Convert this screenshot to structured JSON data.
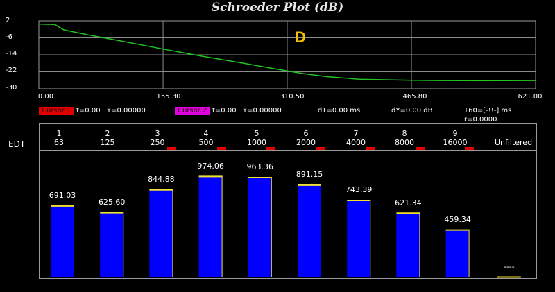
{
  "title": "Schroeder Plot (dB)",
  "colors": {
    "background": "#000000",
    "curve": "#22c422",
    "grid": "#8c8c8c",
    "bar_fill": "#0000ff",
    "bar_top": "#f0e030",
    "cursor1": "#e00000",
    "cursor2": "#e000e0",
    "marker": "#f2c200"
  },
  "plot": {
    "y_ticks": [
      "2",
      "-6",
      "-14",
      "-22",
      "-30"
    ],
    "x_ticks": [
      "0.00",
      "155.30",
      "310.50",
      "465.80",
      "621.00"
    ],
    "marker_label": "D"
  },
  "cursors": {
    "cursor1": {
      "label": "Cursor 1",
      "t": "t=0.00",
      "y": "Y=0.00000"
    },
    "cursor2": {
      "label": "Cursor 2",
      "t": "t=0.00",
      "y": "Y=0.00000"
    },
    "dT": "dT=0.00 ms",
    "dY": "dY=0.00 dB",
    "t60": "T60=[-!!-] ms",
    "r": "r=0.0000"
  },
  "edt": {
    "label": "EDT",
    "bands": [
      {
        "index": "1",
        "freq": "63"
      },
      {
        "index": "2",
        "freq": "125"
      },
      {
        "index": "3",
        "freq": "250"
      },
      {
        "index": "4",
        "freq": "500"
      },
      {
        "index": "5",
        "freq": "1000"
      },
      {
        "index": "6",
        "freq": "2000"
      },
      {
        "index": "7",
        "freq": "4000"
      },
      {
        "index": "8",
        "freq": "8000"
      },
      {
        "index": "9",
        "freq": "16000"
      },
      {
        "index": "",
        "freq": "Unfiltered"
      }
    ]
  },
  "chart_data": [
    {
      "type": "line",
      "title": "Schroeder Plot (dB)",
      "xlim": [
        0,
        621
      ],
      "ylim": [
        -30,
        2
      ],
      "grid": true,
      "series": [
        {
          "x": [
            0,
            20,
            31,
            60,
            100,
            155.3,
            200,
            250,
            310.5,
            330,
            360,
            400,
            465.8,
            500,
            550,
            621
          ],
          "y": [
            0.5,
            0.3,
            -2.2,
            -4.5,
            -7.3,
            -11.3,
            -14.4,
            -17.6,
            -21.6,
            -22.8,
            -24.3,
            -25.5,
            -26,
            -26.1,
            -26.2,
            -26.1
          ]
        }
      ]
    },
    {
      "type": "bar",
      "categories": [
        "63",
        "125",
        "250",
        "500",
        "1000",
        "2000",
        "4000",
        "8000",
        "16000",
        "Unfiltered"
      ],
      "values": [
        691.03,
        625.6,
        844.88,
        974.06,
        963.36,
        891.15,
        743.39,
        621.34,
        459.34,
        0
      ],
      "value_labels": [
        "691.03",
        "625.60",
        "844.88",
        "974.06",
        "963.36",
        "891.15",
        "743.39",
        "621.34",
        "459.34",
        "----"
      ],
      "ylabel": "EDT",
      "ylim": [
        0,
        1000
      ]
    }
  ]
}
